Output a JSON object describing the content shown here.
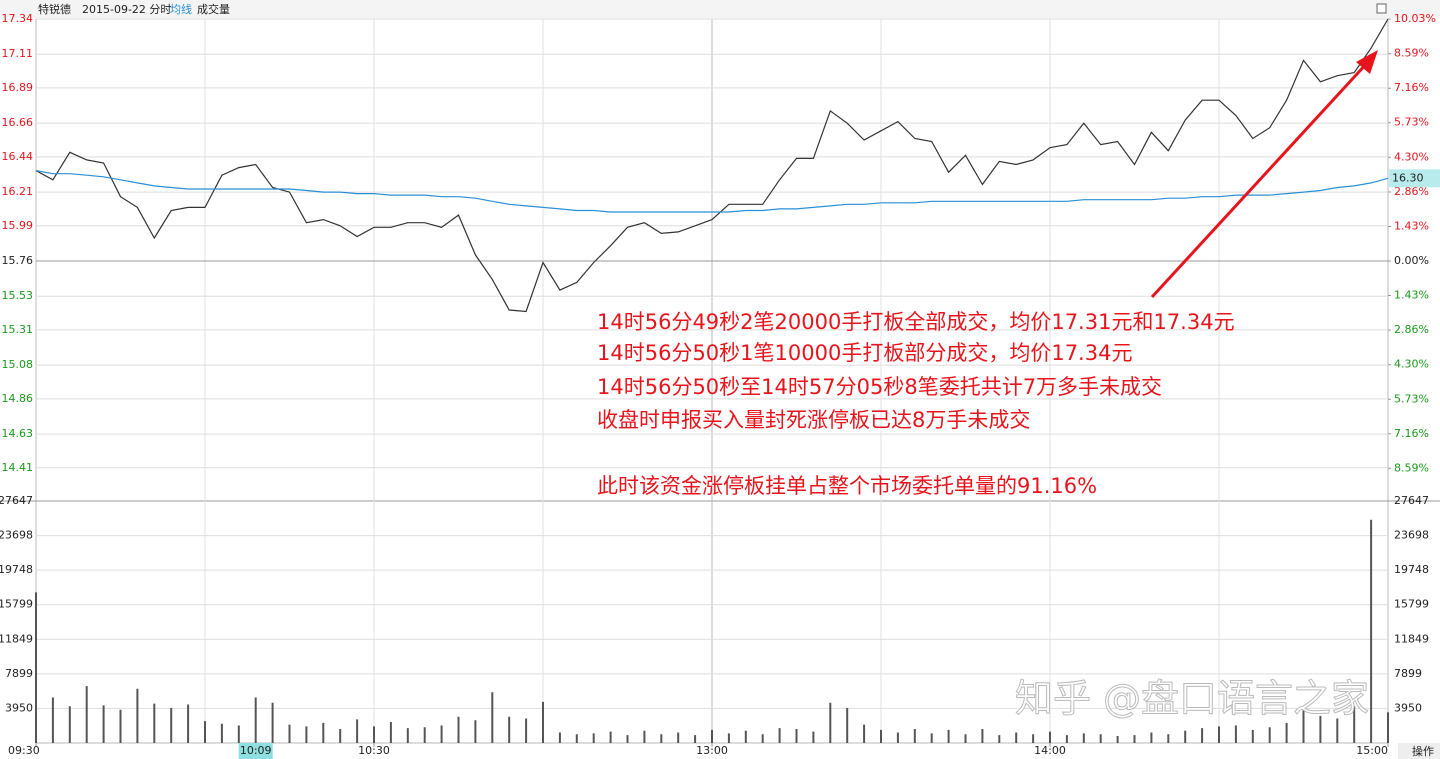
{
  "header": {
    "title": "特锐德",
    "subtitle": "2015-09-22 分时"
  },
  "ui": {
    "button": "操作",
    "watermark": "知乎 @盘口语言之家"
  },
  "chart_data": [
    {
      "type": "line",
      "x": [
        0,
        3,
        6,
        9,
        12,
        15,
        18,
        21,
        24,
        27,
        30,
        33,
        36,
        39,
        42,
        45,
        48,
        51,
        54,
        57,
        60,
        63,
        66,
        69,
        72,
        75,
        78,
        81,
        84,
        87,
        90,
        93,
        96,
        99,
        102,
        105,
        108,
        111,
        114,
        117,
        120,
        123,
        126,
        129,
        132,
        135,
        138,
        141,
        144,
        147,
        150,
        153,
        156,
        159,
        162,
        165,
        168,
        171,
        174,
        177,
        180,
        183,
        186,
        189,
        192,
        195,
        198,
        201,
        204,
        207,
        210,
        213,
        216,
        219,
        222,
        225,
        228,
        231,
        234,
        237,
        240
      ],
      "series": [
        {
          "color": "#333333",
          "values": [
            16.35,
            16.29,
            16.47,
            16.42,
            16.4,
            16.18,
            16.11,
            15.91,
            16.09,
            16.11,
            16.11,
            16.32,
            16.37,
            16.39,
            16.24,
            16.21,
            16.01,
            16.03,
            15.99,
            15.92,
            15.98,
            15.98,
            16.01,
            16.01,
            15.98,
            16.06,
            15.8,
            15.64,
            15.44,
            15.43,
            15.75,
            15.57,
            15.62,
            15.75,
            15.86,
            15.98,
            16.01,
            15.94,
            15.95,
            15.99,
            16.03,
            16.13,
            16.13,
            16.13,
            16.29,
            16.43,
            16.43,
            16.74,
            16.66,
            16.55,
            16.61,
            16.67,
            16.56,
            16.54,
            16.34,
            16.45,
            16.26,
            16.41,
            16.39,
            16.42,
            16.5,
            16.52,
            16.66,
            16.52,
            16.54,
            16.39,
            16.6,
            16.48,
            16.68,
            16.81,
            16.81,
            16.71,
            16.56,
            16.63,
            16.81,
            17.07,
            16.93,
            16.97,
            16.99,
            17.15,
            17.34
          ]
        },
        {
          "name": "均线",
          "color": "#2a8fd6",
          "values": [
            16.35,
            16.33,
            16.33,
            16.32,
            16.31,
            16.29,
            16.27,
            16.25,
            16.24,
            16.23,
            16.23,
            16.23,
            16.23,
            16.23,
            16.23,
            16.23,
            16.22,
            16.21,
            16.21,
            16.2,
            16.2,
            16.19,
            16.19,
            16.19,
            16.18,
            16.18,
            16.17,
            16.15,
            16.13,
            16.12,
            16.11,
            16.1,
            16.09,
            16.09,
            16.08,
            16.08,
            16.08,
            16.08,
            16.08,
            16.08,
            16.08,
            16.08,
            16.09,
            16.09,
            16.1,
            16.1,
            16.11,
            16.12,
            16.13,
            16.13,
            16.14,
            16.14,
            16.14,
            16.15,
            16.15,
            16.15,
            16.15,
            16.15,
            16.15,
            16.15,
            16.15,
            16.15,
            16.16,
            16.16,
            16.16,
            16.16,
            16.16,
            16.17,
            16.17,
            16.18,
            16.18,
            16.19,
            16.19,
            16.19,
            16.2,
            16.21,
            16.22,
            16.24,
            16.25,
            16.27,
            16.3
          ]
        }
      ],
      "xlim": [
        0,
        240
      ],
      "xticks": [
        {
          "value": 0,
          "label": "09:30"
        },
        {
          "value": 60,
          "label": "10:30"
        },
        {
          "value": 120,
          "label": "13:00"
        },
        {
          "value": 180,
          "label": "14:00"
        },
        {
          "value": 240,
          "label": "15:00"
        }
      ],
      "ylim": [
        14.18,
        17.34
      ],
      "yticks": [
        17.34,
        17.11,
        16.89,
        16.66,
        16.44,
        16.21,
        15.99,
        15.76,
        15.53,
        15.31,
        15.08,
        14.86,
        14.63,
        14.41
      ],
      "y2lim": [
        -10.03,
        10.03
      ],
      "y2ticks": [
        {
          "value": 10.03,
          "label": "10.03%"
        },
        {
          "value": 8.59,
          "label": "8.59%"
        },
        {
          "value": 7.16,
          "label": "7.16%"
        },
        {
          "value": 5.73,
          "label": "5.73%"
        },
        {
          "value": 4.3,
          "label": "4.30%"
        },
        {
          "value": 2.86,
          "label": "2.86%"
        },
        {
          "value": 1.43,
          "label": "1.43%"
        },
        {
          "value": 0,
          "label": "0.00%"
        },
        {
          "value": -1.43,
          "label": "1.43%"
        },
        {
          "value": -2.86,
          "label": "2.86%"
        },
        {
          "value": -4.3,
          "label": "4.30%"
        },
        {
          "value": -5.73,
          "label": "5.73%"
        },
        {
          "value": -7.16,
          "label": "7.16%"
        },
        {
          "value": -8.59,
          "label": "8.59%"
        }
      ],
      "cursor_x": {
        "value": 39,
        "label": "10:09"
      },
      "cursor_y": {
        "value": 16.3,
        "label": "16.30"
      },
      "grid": true,
      "annotations": [
        "14时56分49秒2笔20000手打板全部成交，均价17.31元和17.34元",
        "14时56分50秒1笔10000手打板部分成交，均价17.34元",
        "14时56分50秒至14时57分05秒8笔委托共计7万多手未成交",
        "收盘时申报买入量封死涨停板已达8万手未成交",
        "此时该资金涨停板挂单占整个市场委托单量的91.16%"
      ]
    },
    {
      "type": "bar",
      "title": "成交量",
      "color": "#555555",
      "x": [
        0,
        3,
        6,
        9,
        12,
        15,
        18,
        21,
        24,
        27,
        30,
        33,
        36,
        39,
        42,
        45,
        48,
        51,
        54,
        57,
        60,
        63,
        66,
        69,
        72,
        75,
        78,
        81,
        84,
        87,
        90,
        93,
        96,
        99,
        102,
        105,
        108,
        111,
        114,
        117,
        120,
        123,
        126,
        129,
        132,
        135,
        138,
        141,
        144,
        147,
        150,
        153,
        156,
        159,
        162,
        165,
        168,
        171,
        174,
        177,
        180,
        183,
        186,
        189,
        192,
        195,
        198,
        201,
        204,
        207,
        210,
        213,
        216,
        219,
        222,
        225,
        228,
        231,
        234,
        237,
        240
      ],
      "values": [
        17200,
        5200,
        4200,
        6500,
        4300,
        3800,
        6200,
        4500,
        4000,
        4400,
        2500,
        2200,
        2000,
        5200,
        4600,
        2100,
        1900,
        2300,
        1600,
        2700,
        1900,
        2400,
        1700,
        1800,
        2000,
        3000,
        2600,
        5800,
        3000,
        2800,
        4700,
        1200,
        1000,
        1100,
        1300,
        900,
        1400,
        1000,
        1200,
        900,
        1500,
        1100,
        1400,
        1000,
        1700,
        1600,
        1300,
        4600,
        4000,
        2100,
        1500,
        1200,
        1600,
        1100,
        1500,
        1000,
        1600,
        900,
        1200,
        1000,
        1300,
        900,
        1100,
        1000,
        800,
        900,
        1200,
        1000,
        1400,
        1700,
        1900,
        2000,
        1500,
        1800,
        2300,
        3800,
        3100,
        2800,
        4200,
        25500,
        3500
      ],
      "xlim": [
        0,
        240
      ],
      "ylim": [
        0,
        27647
      ],
      "yticks": [
        27647,
        23698,
        19748,
        15799,
        11849,
        7899,
        3950
      ]
    }
  ]
}
